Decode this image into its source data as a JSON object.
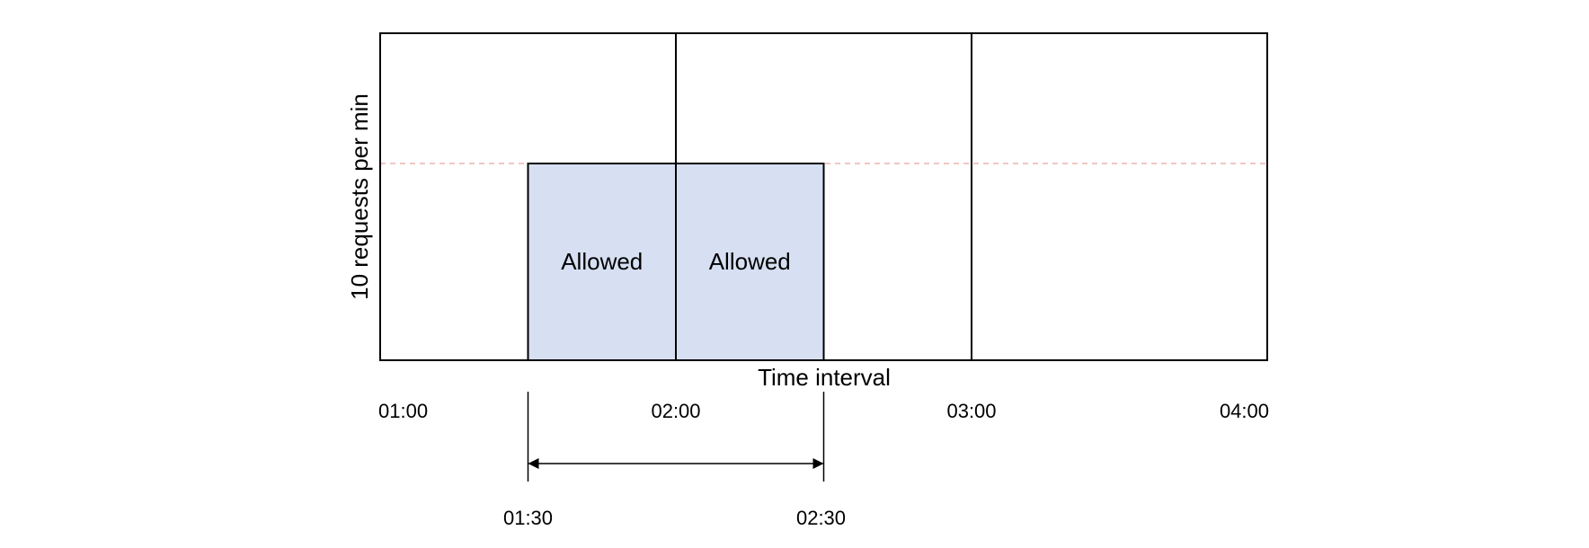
{
  "y_axis_label": "10 requests  per min",
  "x_axis_label": "Time interval",
  "ticks": [
    {
      "label": "01:00",
      "minutes": 0
    },
    {
      "label": "02:00",
      "minutes": 60
    },
    {
      "label": "03:00",
      "minutes": 120
    },
    {
      "label": "04:00",
      "minutes": 180
    }
  ],
  "blocks": [
    {
      "label": "Allowed",
      "start_minutes": 30,
      "end_minutes": 60
    },
    {
      "label": "Allowed",
      "start_minutes": 60,
      "end_minutes": 90
    }
  ],
  "window": {
    "start_label": "01:30",
    "end_label": "02:30",
    "start_minutes": 30,
    "end_minutes": 90
  },
  "colors": {
    "block_fill": "#d7e0f2",
    "limit_line": "#e8a39a",
    "stroke": "#000000"
  }
}
